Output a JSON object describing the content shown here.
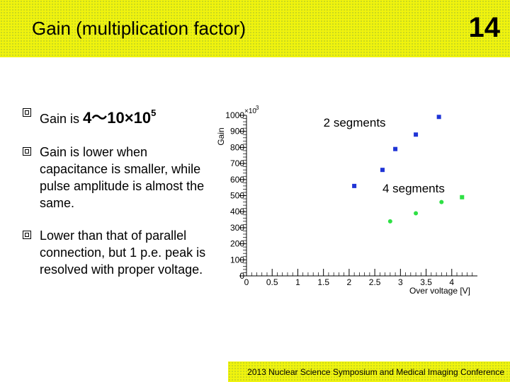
{
  "header": {
    "title": "Gain (multiplication factor)",
    "page_number": "14"
  },
  "bullets": {
    "b1_prefix": "Gain is",
    "b1_range": "4～10×10",
    "b1_exponent": "5",
    "b2": "Gain is lower when capacitance is smaller, while pulse amplitude is almost the same.",
    "b3": "Lower than that of parallel connection, but 1 p.e. peak is resolved with proper voltage."
  },
  "footer": {
    "text": "2013 Nuclear Science Symposium and Medical Imaging Conference"
  },
  "colors": {
    "header_bg": "#f0f30e",
    "series_2seg": "#1f34d6",
    "series_4seg": "#2ee044"
  },
  "chart_data": {
    "type": "scatter",
    "ylabel": "Gain",
    "ymultiplier": "×10",
    "ymultiplier_exp": "3",
    "xlabel": "Over voltage [V]",
    "xlim": [
      0,
      4.5
    ],
    "ylim": [
      0,
      1000
    ],
    "xticks": [
      "0",
      "0.5",
      "1",
      "1.5",
      "2",
      "2.5",
      "3",
      "3.5",
      "4"
    ],
    "yticks": [
      "0",
      "100",
      "200",
      "300",
      "400",
      "500",
      "600",
      "700",
      "800",
      "900",
      "1000"
    ],
    "grid": false,
    "series": [
      {
        "name": "2 segments",
        "marker": "square",
        "color": "#1f34d6",
        "points": [
          [
            2.1,
            560
          ],
          [
            2.65,
            660
          ],
          [
            2.9,
            790
          ],
          [
            3.3,
            880
          ],
          [
            3.75,
            990
          ]
        ]
      },
      {
        "name": "4 segments",
        "marker": "circle",
        "color": "#2ee044",
        "points": [
          [
            2.8,
            340
          ],
          [
            3.3,
            390
          ],
          [
            3.8,
            460
          ]
        ]
      },
      {
        "name": "",
        "marker": "square",
        "color": "#2ee044",
        "points": [
          [
            4.2,
            490
          ]
        ]
      }
    ]
  }
}
